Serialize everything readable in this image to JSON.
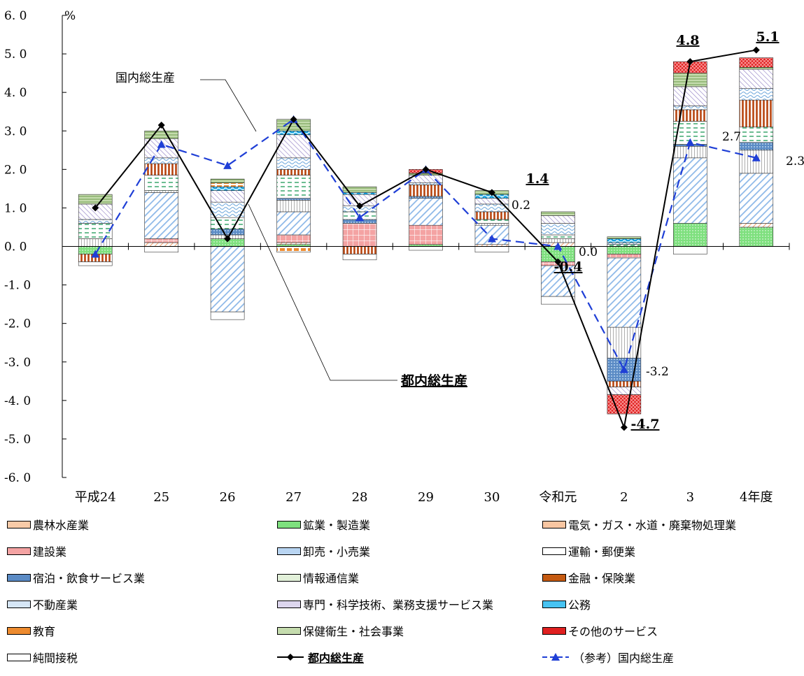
{
  "chart_data": {
    "type": "bar",
    "stacked": true,
    "unit_label": "%",
    "y_ticks": [
      "6. 0",
      "5. 0",
      "4. 0",
      "3. 0",
      "2. 0",
      "1. 0",
      "0. 0",
      "-1. 0",
      "-2. 0",
      "-3. 0",
      "-4. 0",
      "-5. 0",
      "-6. 0"
    ],
    "ylim": [
      -6,
      6
    ],
    "categories": [
      "平成24",
      "25",
      "26",
      "27",
      "28",
      "29",
      "30",
      "令和元",
      "2",
      "3",
      "4年度"
    ],
    "series": [
      {
        "name": "農林水産業",
        "color": "#f4b183",
        "values": [
          0,
          0,
          0,
          0,
          0,
          0,
          0,
          0,
          0,
          0,
          0
        ]
      },
      {
        "name": "鉱業・製造業",
        "color": "#66dd66",
        "values": [
          -0.2,
          0,
          0.2,
          0.05,
          0,
          0.05,
          0,
          -0.4,
          -0.2,
          0.6,
          0.5
        ]
      },
      {
        "name": "電気・ガス・水道・廃棄物処理業",
        "color": "#f4b183",
        "values": [
          0,
          0.1,
          0,
          0.05,
          0,
          0,
          0.05,
          0.1,
          0,
          0,
          0.1
        ]
      },
      {
        "name": "建設業",
        "color": "#f08080",
        "values": [
          0,
          0.1,
          0,
          0.2,
          0.6,
          0.5,
          0,
          -0.1,
          -0.1,
          0,
          0
        ]
      },
      {
        "name": "卸売・小売業",
        "color": "#9dc3e6",
        "values": [
          0,
          1.2,
          -1.7,
          0.6,
          0,
          0.7,
          0.5,
          -0.8,
          -1.8,
          1.7,
          1.3
        ]
      },
      {
        "name": "運輸・郵便業",
        "color": "#ffffff",
        "values": [
          0.2,
          0.05,
          0.1,
          0.3,
          0,
          0,
          0.05,
          0.1,
          -0.8,
          0.3,
          0.6
        ]
      },
      {
        "name": "宿泊・飲食サービス業",
        "color": "#5b9bd5",
        "values": [
          0,
          0,
          0.15,
          0.05,
          0.1,
          0.05,
          0,
          0,
          -0.6,
          0.05,
          0.2
        ]
      },
      {
        "name": "情報通信業",
        "color": "#a9d18e",
        "values": [
          0.4,
          0.4,
          0.3,
          0.6,
          0.2,
          0,
          0.1,
          0.1,
          0.05,
          0.6,
          0.4
        ]
      },
      {
        "name": "金融・保険業",
        "color": "#c55a11",
        "values": [
          -0.2,
          0.3,
          0,
          0.15,
          -0.2,
          0.3,
          0.2,
          0,
          -0.15,
          0.3,
          0.7
        ]
      },
      {
        "name": "不動産業",
        "color": "#bdd7ee",
        "values": [
          0.1,
          0.15,
          0.4,
          0.3,
          0.15,
          0.05,
          0.2,
          0.3,
          0.05,
          0.1,
          0.3
        ]
      },
      {
        "name": "専門・科学技術、業務支援サービス業",
        "color": "#b4a7d6",
        "values": [
          0.4,
          0.5,
          0.3,
          0.6,
          0.3,
          0.2,
          0.15,
          0.2,
          -0.2,
          0.5,
          0.5
        ]
      },
      {
        "name": "公務",
        "color": "#00b0f0",
        "values": [
          0,
          0,
          0.1,
          0.1,
          0.05,
          0,
          0.1,
          0,
          0.1,
          0,
          0
        ]
      },
      {
        "name": "教育",
        "color": "#ed7d31",
        "values": [
          0,
          0,
          0.1,
          -0.15,
          0,
          0,
          0,
          0,
          0,
          0,
          0
        ]
      },
      {
        "name": "保健衛生・社会事業",
        "color": "#a9d18e",
        "values": [
          0.25,
          0.2,
          0.1,
          0.3,
          0.15,
          0.05,
          0.1,
          0.1,
          0.05,
          0.35,
          0.05
        ]
      },
      {
        "name": "その他のサービス",
        "color": "#e74c3c",
        "values": [
          0,
          0,
          0,
          0,
          0,
          0.1,
          0,
          0,
          -0.5,
          0.3,
          0.25
        ]
      },
      {
        "name": "純間接税",
        "color": "#ffffff",
        "values": [
          -0.1,
          -0.15,
          -0.2,
          0,
          -0.15,
          -0.1,
          -0.15,
          -0.2,
          0,
          -0.2,
          0
        ]
      }
    ],
    "lines": [
      {
        "name": "都内総生産",
        "values": [
          1.0,
          3.15,
          0.2,
          3.3,
          1.05,
          2.0,
          1.4,
          -0.4,
          -4.7,
          4.8,
          5.1
        ]
      },
      {
        "name": "（参考）国内総生産",
        "values": [
          -0.2,
          2.65,
          2.1,
          3.3,
          0.75,
          2.0,
          0.2,
          0.0,
          -3.2,
          2.7,
          2.3
        ]
      }
    ],
    "value_labels": {
      "tokyo": [
        "1.4",
        "-0.4",
        "-4.7",
        "4.8",
        "5.1"
      ],
      "national": [
        "0.2",
        "0.0",
        "-3.2",
        "2.7",
        "2.3"
      ]
    },
    "annotations": {
      "national_label": "国内総生産",
      "tokyo_label": "都内総生産"
    }
  },
  "legend": [
    {
      "label": "農林水産業",
      "pattern": "dots-orange"
    },
    {
      "label": "鉱業・製造業",
      "pattern": "dots-green"
    },
    {
      "label": "電気・ガス・水道・廃棄物処理業",
      "pattern": "hatch-orange"
    },
    {
      "label": "建設業",
      "pattern": "grid-pink"
    },
    {
      "label": "卸売・小売業",
      "pattern": "diag-blue"
    },
    {
      "label": "運輸・郵便業",
      "pattern": "vert-white"
    },
    {
      "label": "宿泊・飲食サービス業",
      "pattern": "cross-blue"
    },
    {
      "label": "情報通信業",
      "pattern": "dash-green"
    },
    {
      "label": "金融・保険業",
      "pattern": "vert-brown"
    },
    {
      "label": "不動産業",
      "pattern": "wave-blue"
    },
    {
      "label": "専門・科学技術、業務支援サービス業",
      "pattern": "diag-purple"
    },
    {
      "label": "公務",
      "pattern": "wave-cyan"
    },
    {
      "label": "教育",
      "pattern": "dash-orange"
    },
    {
      "label": "保健衛生・社会事業",
      "pattern": "horiz-green"
    },
    {
      "label": "その他のサービス",
      "pattern": "cross-red"
    },
    {
      "label": "純間接税",
      "pattern": "plain"
    },
    {
      "label": "都内総生産",
      "pattern": "line-black"
    },
    {
      "label": "（参考）国内総生産",
      "pattern": "line-blue"
    }
  ]
}
